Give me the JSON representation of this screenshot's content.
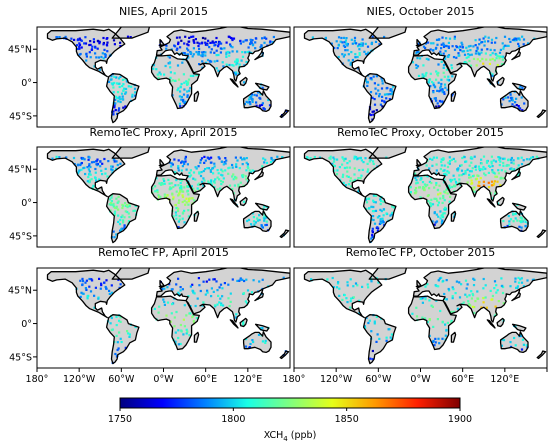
{
  "chart_data": {
    "type": "heatmap",
    "panels": [
      {
        "title": "NIES, April 2015",
        "season": "april",
        "retrieval": "nies"
      },
      {
        "title": "NIES, October 2015",
        "season": "october",
        "retrieval": "nies"
      },
      {
        "title": "RemoTeC Proxy, April 2015",
        "season": "april",
        "retrieval": "proxy"
      },
      {
        "title": "RemoTeC Proxy, October 2015",
        "season": "october",
        "retrieval": "proxy"
      },
      {
        "title": "RemoTeC FP, April 2015",
        "season": "april",
        "retrieval": "fp"
      },
      {
        "title": "RemoTeC FP, October 2015",
        "season": "october",
        "retrieval": "fp"
      }
    ],
    "xlim": [
      -180,
      180
    ],
    "ylim": [
      -60,
      75
    ],
    "lat_ticks": [
      {
        "value": 45,
        "label": "45°N"
      },
      {
        "value": 0,
        "label": "0°"
      },
      {
        "value": -45,
        "label": "45°S"
      }
    ],
    "lon_ticks": [
      {
        "value": -180,
        "label": "180°"
      },
      {
        "value": -120,
        "label": "120°W"
      },
      {
        "value": -60,
        "label": "60°W"
      },
      {
        "value": 0,
        "label": "0°W"
      },
      {
        "value": 60,
        "label": "60°E"
      },
      {
        "value": 120,
        "label": "120°E"
      }
    ],
    "colorbar": {
      "label_main": "XCH",
      "label_sub": "4",
      "label_unit": " (ppb)",
      "min": 1750,
      "max": 1900,
      "ticks": [
        1750,
        1800,
        1850,
        1900
      ],
      "colors": [
        "#00007f",
        "#0000ff",
        "#0080ff",
        "#19ffe5",
        "#7fff7f",
        "#e5ff19",
        "#ff9900",
        "#ff2000",
        "#7f0000"
      ]
    },
    "land_color": "#d3d3d3",
    "ocean_color": "#ffffff"
  }
}
